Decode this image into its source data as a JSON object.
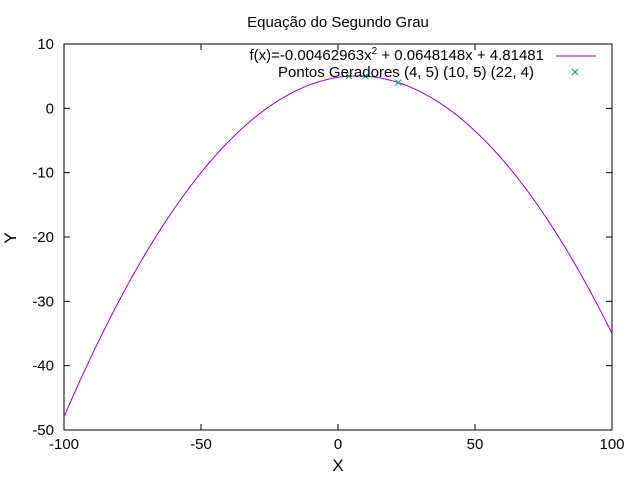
{
  "chart_data": {
    "type": "line",
    "title": "Equação do Segundo Grau",
    "xlabel": "X",
    "ylabel": "Y",
    "xlim": [
      -100,
      100
    ],
    "ylim": [
      -50,
      10
    ],
    "xticks": [
      -100,
      -50,
      0,
      50,
      100
    ],
    "yticks": [
      -50,
      -40,
      -30,
      -20,
      -10,
      0,
      10
    ],
    "x_tick_labels": [
      "-100",
      "-50",
      "0",
      "50",
      "100"
    ],
    "y_tick_labels": [
      "-50",
      "-40",
      "-30",
      "-20",
      "-10",
      "0",
      "10"
    ],
    "grid": false,
    "legend_position": "top-right",
    "series": [
      {
        "kind": "function",
        "name_main": "f(x)=-0.00462963x",
        "name_sup": "2",
        "name_rest": " + 0.0648148x + 4.81481",
        "coefficients": {
          "a": -0.00462963,
          "b": 0.0648148,
          "c": 4.81481
        },
        "color": "#9400d3"
      },
      {
        "kind": "points",
        "name": "Pontos Geradores (4, 5) (10, 5) (22, 4)",
        "x": [
          4,
          10,
          22
        ],
        "y": [
          5,
          5,
          4
        ],
        "marker": "x",
        "color": "#009e73"
      }
    ]
  }
}
